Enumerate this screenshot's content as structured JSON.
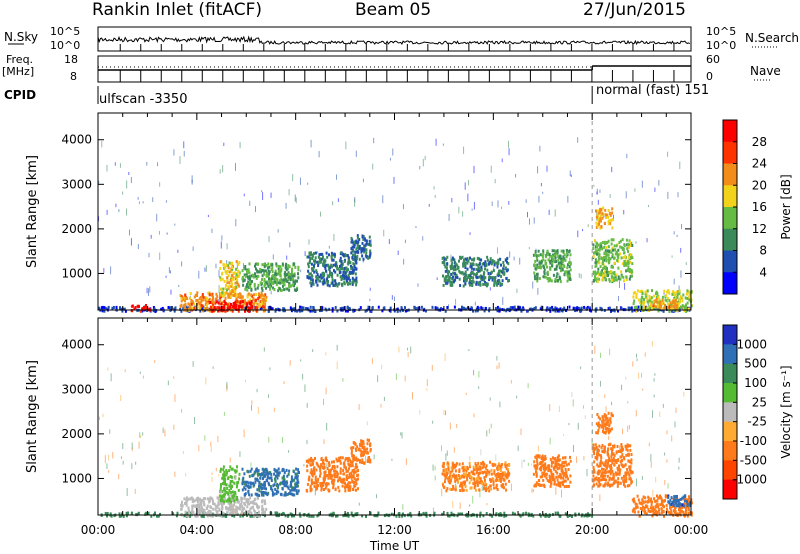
{
  "header": {
    "station": "Rankin Inlet (fitACF)",
    "beam": "Beam 05",
    "date": "27/Jun/2015"
  },
  "top_panels": {
    "nsky_label": "N.Sky",
    "nsky_ticks": [
      "10^5",
      "10^0"
    ],
    "nsearch_label": "N.Search",
    "nsearch_ticks": [
      "10^5",
      "10^0"
    ],
    "freq_label": "Freq.",
    "freq_unit": "[MHz]",
    "freq_ticks": [
      "18",
      "8"
    ],
    "nave_label": "Nave",
    "nave_ticks": [
      "60",
      "0"
    ],
    "cpid_label": "CPID",
    "cpid_modes": [
      {
        "name": "ulfscan -3350",
        "start_hour": 0,
        "end_hour": 20
      },
      {
        "name": "normal (fast) 151",
        "start_hour": 20,
        "end_hour": 24
      }
    ]
  },
  "chart_data": [
    {
      "type": "heatmap",
      "name": "power",
      "xlabel": "",
      "ylabel": "Slant Range [km]",
      "xlim": [
        0,
        24
      ],
      "ylim": [
        180,
        4600
      ],
      "yticks": [
        "1000",
        "2000",
        "3000",
        "4000"
      ],
      "colorbar": {
        "label": "Power [dB]",
        "ticks": [
          "4",
          "8",
          "12",
          "16",
          "20",
          "24",
          "28"
        ],
        "colors": [
          "#0000ff",
          "#1f4fb0",
          "#3a8a5a",
          "#66bb44",
          "#f2d21a",
          "#f28c1a",
          "#ff3300",
          "#ff0000"
        ]
      },
      "regions": [
        {
          "t0": 0.0,
          "t1": 24.0,
          "r0": 180,
          "r1": 280,
          "v": 5
        },
        {
          "t0": 1.3,
          "t1": 2.1,
          "r0": 180,
          "r1": 320,
          "v": 30
        },
        {
          "t0": 3.3,
          "t1": 6.8,
          "r0": 180,
          "r1": 600,
          "v": 22
        },
        {
          "t0": 4.5,
          "t1": 6.2,
          "r0": 180,
          "r1": 420,
          "v": 30
        },
        {
          "t0": 4.9,
          "t1": 5.7,
          "r0": 500,
          "r1": 1300,
          "v": 18
        },
        {
          "t0": 5.8,
          "t1": 8.1,
          "r0": 650,
          "r1": 1250,
          "v": 12
        },
        {
          "t0": 8.4,
          "t1": 10.5,
          "r0": 750,
          "r1": 1500,
          "v": 8
        },
        {
          "t0": 10.2,
          "t1": 11.0,
          "r0": 1350,
          "r1": 1900,
          "v": 7
        },
        {
          "t0": 13.9,
          "t1": 16.6,
          "r0": 750,
          "r1": 1400,
          "v": 9
        },
        {
          "t0": 17.6,
          "t1": 19.1,
          "r0": 850,
          "r1": 1550,
          "v": 12
        },
        {
          "t0": 20.0,
          "t1": 21.6,
          "r0": 850,
          "r1": 1800,
          "v": 14
        },
        {
          "t0": 20.1,
          "t1": 20.8,
          "r0": 2050,
          "r1": 2500,
          "v": 20
        },
        {
          "t0": 21.6,
          "t1": 24.0,
          "r0": 180,
          "r1": 650,
          "v": 16
        },
        {
          "t0": 22.4,
          "t1": 23.4,
          "r0": 250,
          "r1": 450,
          "v": 22
        }
      ]
    },
    {
      "type": "heatmap",
      "name": "velocity",
      "xlabel": "Time UT",
      "ylabel": "Slant Range [km]",
      "xlim": [
        0,
        24
      ],
      "ylim": [
        180,
        4600
      ],
      "xticks": [
        "00:00",
        "04:00",
        "08:00",
        "12:00",
        "16:00",
        "20:00",
        "00:00"
      ],
      "yticks": [
        "1000",
        "2000",
        "3000",
        "4000"
      ],
      "colorbar": {
        "label": "Velocity [m s^-1]",
        "ticks": [
          "1000",
          "500",
          "100",
          "25",
          "-25",
          "-100",
          "-500",
          "-1000"
        ],
        "colors": [
          "#2030c0",
          "#2f6fb5",
          "#3a8a5a",
          "#55bb33",
          "#bbbbbb",
          "#ffaa33",
          "#ff7a1a",
          "#ff4400",
          "#ff0000"
        ]
      },
      "regions": [
        {
          "t0": 0.0,
          "t1": 20.0,
          "r0": 180,
          "r1": 260,
          "v": 150
        },
        {
          "t0": 3.3,
          "t1": 6.8,
          "r0": 180,
          "r1": 600,
          "v": 0
        },
        {
          "t0": 4.9,
          "t1": 5.7,
          "r0": 500,
          "r1": 1300,
          "v": 40
        },
        {
          "t0": 5.8,
          "t1": 8.1,
          "r0": 650,
          "r1": 1250,
          "v": 600
        },
        {
          "t0": 8.4,
          "t1": 10.5,
          "r0": 750,
          "r1": 1500,
          "v": -200
        },
        {
          "t0": 10.2,
          "t1": 11.0,
          "r0": 1350,
          "r1": 1900,
          "v": -150
        },
        {
          "t0": 13.9,
          "t1": 16.6,
          "r0": 750,
          "r1": 1400,
          "v": -120
        },
        {
          "t0": 17.6,
          "t1": 19.1,
          "r0": 850,
          "r1": 1550,
          "v": -180
        },
        {
          "t0": 20.0,
          "t1": 21.6,
          "r0": 850,
          "r1": 1800,
          "v": -300
        },
        {
          "t0": 20.1,
          "t1": 20.8,
          "r0": 2050,
          "r1": 2500,
          "v": -200
        },
        {
          "t0": 21.6,
          "t1": 24.0,
          "r0": 180,
          "r1": 650,
          "v": -300
        },
        {
          "t0": 23.0,
          "t1": 24.0,
          "r0": 400,
          "r1": 650,
          "v": 800
        }
      ]
    }
  ]
}
